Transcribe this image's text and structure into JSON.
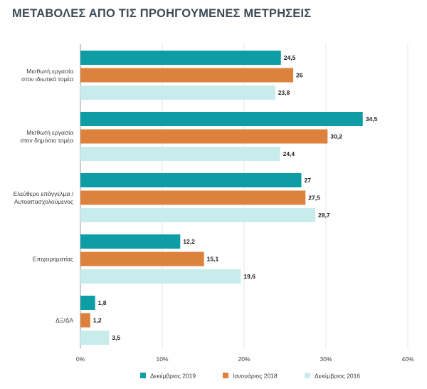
{
  "title": "ΜΕΤΑΒΟΛΕΣ ΑΠΟ ΤΙΣ ΠΡΟΗΓΟΥΜΕΝΕΣ ΜΕΤΡΗΣΕΙΣ",
  "chart_data": {
    "type": "bar",
    "orientation": "horizontal",
    "title": "ΜΕΤΑΒΟΛΕΣ ΑΠΟ ΤΙΣ ΠΡΟΗΓΟΥΜΕΝΕΣ ΜΕΤΡΗΣΕΙΣ",
    "categories": [
      [
        "Μισθωτή εργασία",
        "στον ιδιωτικό τομέα"
      ],
      [
        "Μισθωτή εργασία",
        "στον δημόσιο τομέα"
      ],
      [
        "Ελεύθερο επάγγελμα /",
        "Αυτοαπασχολούμενος"
      ],
      [
        "Επιχειρηματίας"
      ],
      [
        "ΔΞ/ΔΑ"
      ]
    ],
    "series": [
      {
        "name": "Δεκέμβριος 2019",
        "color": "#0e9da5",
        "values": [
          24.5,
          34.5,
          27,
          12.2,
          1.8
        ],
        "labels": [
          "24,5",
          "34,5",
          "27",
          "12,2",
          "1,8"
        ]
      },
      {
        "name": "Ιανουάριος 2018",
        "color": "#dd823c",
        "values": [
          26,
          30.2,
          27.5,
          15.1,
          1.2
        ],
        "labels": [
          "26",
          "30,2",
          "27,5",
          "15,1",
          "1,2"
        ]
      },
      {
        "name": "Δεκέμβριος 2016",
        "color": "#c8ecec",
        "values": [
          23.8,
          24.4,
          28.7,
          19.6,
          3.5
        ],
        "labels": [
          "23,8",
          "24,4",
          "28,7",
          "19,6",
          "3,5"
        ]
      }
    ],
    "xlim": [
      0,
      40
    ],
    "xticks": [
      0,
      10,
      20,
      30,
      40
    ],
    "xtick_labels": [
      "0%",
      "10%",
      "20%",
      "30%",
      "40%"
    ],
    "legend_position": "bottom"
  }
}
